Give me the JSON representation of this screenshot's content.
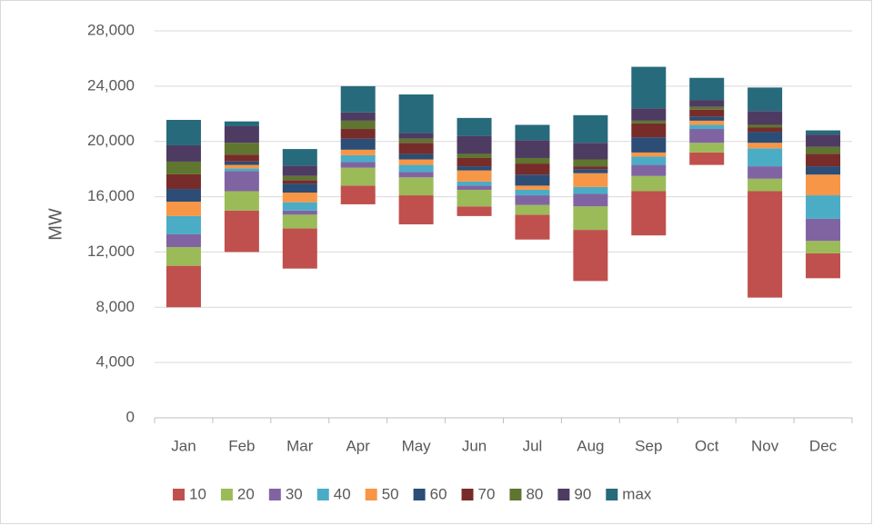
{
  "chart_data": {
    "type": "stacked_bar",
    "y_label": "MW",
    "categories": [
      "Jan",
      "Feb",
      "Mar",
      "Apr",
      "May",
      "Jun",
      "Jul",
      "Aug",
      "Sep",
      "Oct",
      "Nov",
      "Dec"
    ],
    "ylim": [
      0,
      28000
    ],
    "yticks": [
      0,
      {
        "value": 4000,
        "label": "4,000"
      },
      {
        "value": 8000,
        "label": "8,000"
      },
      {
        "value": 12000,
        "label": "12,000"
      },
      {
        "value": 16000,
        "label": "16,000"
      },
      {
        "value": 20000,
        "label": "20,000"
      },
      {
        "value": 24000,
        "label": "24,000"
      },
      {
        "value": 28000,
        "label": "28,000"
      }
    ],
    "grid": true,
    "series": [
      {
        "color": "none",
        "values": [
          8000,
          12000,
          10800,
          15450,
          14000,
          14600,
          12900,
          9900,
          13200,
          18300,
          8700,
          10100
        ]
      },
      {
        "name": "10",
        "color": "#c0504d",
        "values": [
          3000,
          3000,
          2900,
          1350,
          2100,
          700,
          1800,
          3700,
          3200,
          900,
          7700,
          1800
        ]
      },
      {
        "name": "20",
        "color": "#9bbb59",
        "values": [
          1350,
          1400,
          1000,
          1300,
          1300,
          1200,
          700,
          1700,
          1100,
          700,
          900,
          900
        ]
      },
      {
        "name": "30",
        "color": "#8064a2",
        "values": [
          930,
          1450,
          300,
          400,
          400,
          300,
          700,
          900,
          800,
          1000,
          900,
          1600
        ]
      },
      {
        "name": "40",
        "color": "#4bacc6",
        "values": [
          1320,
          200,
          600,
          500,
          500,
          300,
          400,
          500,
          600,
          300,
          1300,
          1700
        ]
      },
      {
        "name": "50",
        "color": "#f79646",
        "values": [
          1040,
          250,
          700,
          400,
          400,
          800,
          300,
          1000,
          300,
          300,
          400,
          1500
        ]
      },
      {
        "name": "60",
        "color": "#2c4d75",
        "values": [
          920,
          250,
          650,
          800,
          400,
          300,
          800,
          300,
          1100,
          300,
          800,
          600
        ]
      },
      {
        "name": "70",
        "color": "#772c2a",
        "values": [
          1060,
          500,
          250,
          700,
          800,
          600,
          800,
          200,
          1000,
          500,
          300,
          900
        ]
      },
      {
        "name": "80",
        "color": "#5f7530",
        "values": [
          920,
          850,
          300,
          600,
          300,
          300,
          400,
          500,
          200,
          200,
          200,
          500
        ]
      },
      {
        "name": "90",
        "color": "#4d3b62",
        "values": [
          1180,
          1200,
          750,
          600,
          400,
          1300,
          1300,
          1200,
          900,
          500,
          1000,
          900
        ]
      },
      {
        "name": "max",
        "color": "#276a7c",
        "values": [
          1840,
          350,
          1200,
          1900,
          2800,
          1300,
          1100,
          2000,
          3000,
          1600,
          1700,
          300
        ]
      }
    ]
  }
}
